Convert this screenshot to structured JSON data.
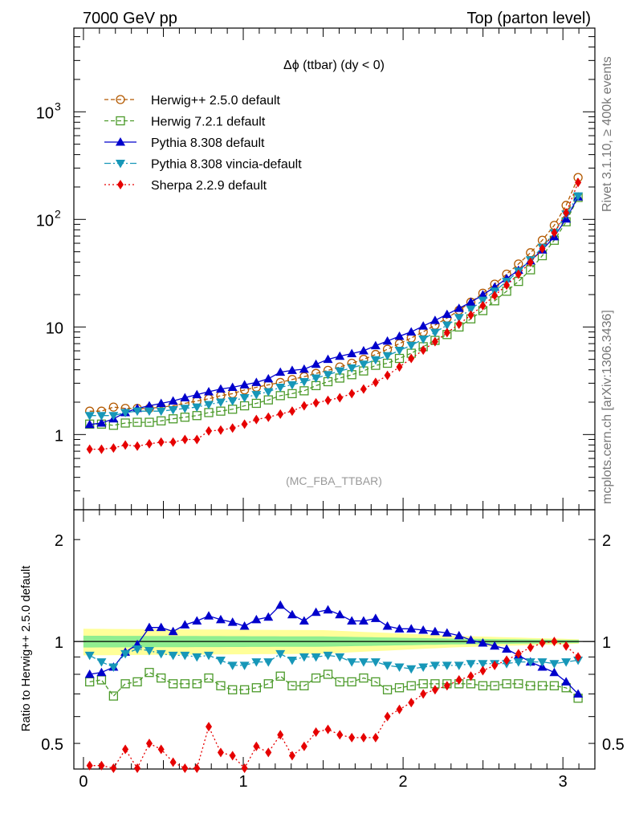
{
  "header": {
    "left": "7000 GeV pp",
    "right": "Top (parton level)"
  },
  "side_labels": {
    "rivet": "Rivet 3.1.10, ≥ 400k events",
    "mcplots": "mcplots.cern.ch [arXiv:1306.3436]"
  },
  "chart_data": [
    {
      "type": "line",
      "panel": "main",
      "title": "Δϕ (ttbar) (dy < 0)",
      "watermark": "(MC_FBA_TTBAR)",
      "yscale": "log",
      "xlim": [
        -0.06,
        3.2
      ],
      "ylim": [
        0.2,
        6000
      ],
      "xticks": [
        "0",
        "1",
        "2",
        "3"
      ],
      "yticks": [
        {
          "value": 1,
          "label": "1"
        },
        {
          "value": 10,
          "label": "10"
        },
        {
          "value": 100,
          "label": "10",
          "sup": "2"
        },
        {
          "value": 1000,
          "label": "10",
          "sup": "3"
        }
      ],
      "legend_position": "top-left",
      "x": [
        0.039,
        0.113,
        0.188,
        0.262,
        0.337,
        0.412,
        0.486,
        0.561,
        0.635,
        0.71,
        0.784,
        0.859,
        0.933,
        1.008,
        1.082,
        1.157,
        1.232,
        1.306,
        1.381,
        1.455,
        1.53,
        1.604,
        1.679,
        1.753,
        1.828,
        1.902,
        1.977,
        2.051,
        2.126,
        2.2,
        2.275,
        2.35,
        2.424,
        2.499,
        2.573,
        2.648,
        2.722,
        2.797,
        2.871,
        2.946,
        3.02,
        3.095
      ],
      "series": [
        {
          "name": "Herwig++ 2.5.0 default",
          "color": "#b35900",
          "marker": "open-circle",
          "dash": "5,3",
          "values": [
            1.65,
            1.65,
            1.8,
            1.75,
            1.75,
            1.75,
            1.8,
            1.85,
            1.95,
            2.05,
            2.15,
            2.3,
            2.4,
            2.6,
            2.75,
            2.9,
            3.05,
            3.25,
            3.45,
            3.7,
            3.95,
            4.25,
            4.6,
            5.0,
            5.55,
            6.2,
            7.0,
            7.9,
            9.0,
            10.4,
            12.1,
            14.3,
            17.0,
            20.6,
            25.0,
            31.0,
            38.5,
            49.0,
            64.0,
            88.0,
            135.0,
            245.0
          ]
        },
        {
          "name": "Herwig 7.2.1 default",
          "color": "#4c9a2a",
          "marker": "open-square",
          "dash": "5,3",
          "values": [
            1.25,
            1.25,
            1.22,
            1.28,
            1.3,
            1.3,
            1.34,
            1.4,
            1.45,
            1.5,
            1.6,
            1.65,
            1.72,
            1.85,
            1.95,
            2.1,
            2.3,
            2.4,
            2.55,
            2.85,
            3.1,
            3.35,
            3.6,
            3.9,
            4.4,
            4.6,
            5.1,
            5.7,
            6.55,
            7.5,
            8.5,
            10.0,
            11.9,
            14.2,
            17.5,
            21.5,
            26.5,
            34.0,
            46.0,
            64.0,
            95.0,
            160.0
          ]
        },
        {
          "name": "Pythia 8.308 default",
          "color": "#0000cc",
          "marker": "filled-triangle-up",
          "dash": "",
          "values": [
            1.24,
            1.28,
            1.4,
            1.6,
            1.75,
            1.85,
            1.95,
            2.05,
            2.2,
            2.35,
            2.5,
            2.65,
            2.75,
            2.9,
            3.05,
            3.3,
            3.8,
            3.95,
            4.05,
            4.5,
            5.0,
            5.35,
            5.65,
            6.0,
            6.7,
            7.4,
            8.2,
            9.0,
            10.2,
            11.5,
            13.1,
            14.9,
            17.0,
            19.9,
            23.5,
            28.2,
            33.7,
            41.2,
            52.0,
            69.0,
            101.0,
            162.0
          ]
        },
        {
          "name": "Pythia 8.308 vincia-default",
          "color": "#1797b8",
          "marker": "filled-triangle-down",
          "dash": "8,3,2,3",
          "values": [
            1.5,
            1.5,
            1.5,
            1.6,
            1.65,
            1.65,
            1.65,
            1.7,
            1.75,
            1.8,
            1.9,
            2.0,
            2.05,
            2.2,
            2.35,
            2.5,
            2.75,
            2.9,
            3.1,
            3.35,
            3.6,
            3.9,
            4.15,
            4.5,
            4.95,
            5.4,
            6.05,
            6.75,
            7.7,
            8.9,
            10.4,
            12.2,
            14.6,
            17.7,
            21.5,
            26.5,
            33.0,
            42.0,
            55.0,
            75.0,
            112.0,
            165.0
          ]
        },
        {
          "name": "Sherpa 2.2.9 default",
          "color": "#e60000",
          "marker": "filled-diamond",
          "dash": "2,3",
          "values": [
            0.73,
            0.73,
            0.75,
            0.8,
            0.78,
            0.82,
            0.85,
            0.85,
            0.9,
            0.9,
            1.08,
            1.1,
            1.15,
            1.25,
            1.38,
            1.45,
            1.55,
            1.65,
            1.85,
            1.97,
            2.08,
            2.2,
            2.4,
            2.65,
            3.05,
            3.55,
            4.25,
            5.1,
            6.1,
            7.3,
            8.85,
            10.6,
            12.9,
            15.8,
            19.6,
            24.5,
            31.0,
            40.0,
            53.5,
            75.0,
            115.0,
            220.0
          ]
        }
      ]
    },
    {
      "type": "line",
      "panel": "ratio",
      "ylabel": "Ratio to Herwig++ 2.5.0 default",
      "yscale": "log",
      "xlim": [
        -0.06,
        3.2
      ],
      "ylim": [
        0.42,
        2.45
      ],
      "xticks": [
        "0",
        "1",
        "2",
        "3"
      ],
      "yticks": [
        {
          "value": 0.5,
          "label": "0.5"
        },
        {
          "value": 1,
          "label": "1"
        },
        {
          "value": 2,
          "label": "2"
        }
      ],
      "reference_band": {
        "color_inner": "#90ee90",
        "color_outer": "#ffff99",
        "inner_half_width": [
          0.04,
          0.035,
          0.02,
          0.01
        ],
        "outer_half_width": [
          0.09,
          0.08,
          0.04,
          0.015
        ],
        "band_x": [
          0.0,
          1.5,
          2.3,
          3.1
        ]
      },
      "x": [
        0.039,
        0.113,
        0.188,
        0.262,
        0.337,
        0.412,
        0.486,
        0.561,
        0.635,
        0.71,
        0.784,
        0.859,
        0.933,
        1.008,
        1.082,
        1.157,
        1.232,
        1.306,
        1.381,
        1.455,
        1.53,
        1.604,
        1.679,
        1.753,
        1.828,
        1.902,
        1.977,
        2.051,
        2.126,
        2.2,
        2.275,
        2.35,
        2.424,
        2.499,
        2.573,
        2.648,
        2.722,
        2.797,
        2.871,
        2.946,
        3.02,
        3.095
      ],
      "series": [
        {
          "name": "Herwig 7.2.1 default",
          "color": "#4c9a2a",
          "marker": "open-square",
          "dash": "5,3",
          "values": [
            0.76,
            0.77,
            0.69,
            0.75,
            0.76,
            0.81,
            0.78,
            0.75,
            0.75,
            0.75,
            0.78,
            0.74,
            0.72,
            0.72,
            0.73,
            0.75,
            0.79,
            0.74,
            0.74,
            0.78,
            0.8,
            0.76,
            0.76,
            0.78,
            0.76,
            0.72,
            0.73,
            0.74,
            0.75,
            0.75,
            0.75,
            0.75,
            0.75,
            0.74,
            0.74,
            0.75,
            0.75,
            0.74,
            0.74,
            0.74,
            0.73,
            0.68
          ]
        },
        {
          "name": "Pythia 8.308 default",
          "color": "#0000cc",
          "marker": "filled-triangle-up",
          "dash": "",
          "values": [
            0.8,
            0.81,
            0.84,
            0.93,
            0.98,
            1.1,
            1.1,
            1.07,
            1.12,
            1.15,
            1.19,
            1.16,
            1.14,
            1.11,
            1.16,
            1.18,
            1.28,
            1.2,
            1.15,
            1.22,
            1.24,
            1.2,
            1.15,
            1.15,
            1.17,
            1.11,
            1.09,
            1.09,
            1.08,
            1.07,
            1.06,
            1.04,
            1.01,
            0.99,
            0.97,
            0.95,
            0.91,
            0.87,
            0.84,
            0.81,
            0.76,
            0.7
          ]
        },
        {
          "name": "Pythia 8.308 vincia-default",
          "color": "#1797b8",
          "marker": "filled-triangle-down",
          "dash": "8,3,2,3",
          "values": [
            0.91,
            0.87,
            0.84,
            0.92,
            0.95,
            0.94,
            0.92,
            0.91,
            0.91,
            0.9,
            0.91,
            0.88,
            0.85,
            0.85,
            0.87,
            0.87,
            0.92,
            0.88,
            0.9,
            0.9,
            0.91,
            0.9,
            0.87,
            0.87,
            0.87,
            0.85,
            0.84,
            0.83,
            0.84,
            0.85,
            0.85,
            0.85,
            0.86,
            0.86,
            0.86,
            0.86,
            0.87,
            0.87,
            0.87,
            0.86,
            0.87,
            0.88
          ]
        },
        {
          "name": "Sherpa 2.2.9 default",
          "color": "#e60000",
          "marker": "filled-diamond",
          "dash": "2,3",
          "values": [
            0.43,
            0.43,
            0.41,
            0.48,
            0.42,
            0.5,
            0.48,
            0.44,
            0.42,
            0.42,
            0.56,
            0.47,
            0.46,
            0.42,
            0.49,
            0.47,
            0.53,
            0.46,
            0.49,
            0.54,
            0.55,
            0.53,
            0.52,
            0.52,
            0.52,
            0.6,
            0.63,
            0.66,
            0.7,
            0.72,
            0.74,
            0.77,
            0.79,
            0.82,
            0.85,
            0.88,
            0.92,
            0.96,
            0.99,
            1.0,
            0.97,
            0.9
          ]
        }
      ]
    }
  ]
}
